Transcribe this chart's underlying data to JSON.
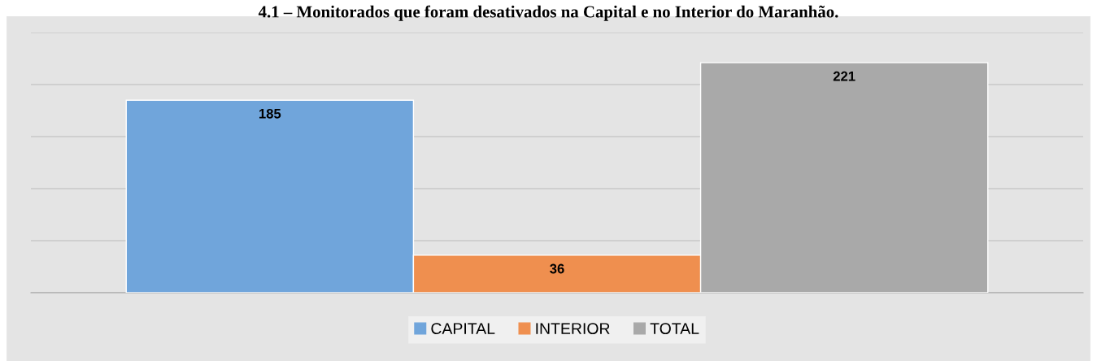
{
  "chart_data": {
    "type": "bar",
    "title": "4.1 – Monitorados que foram desativados na Capital e no Interior do Maranhão.",
    "categories": [
      null
    ],
    "series": [
      {
        "name": "CAPITAL",
        "color": "#70a5db",
        "values": [
          185
        ]
      },
      {
        "name": "INTERIOR",
        "color": "#ef8f4f",
        "values": [
          36
        ]
      },
      {
        "name": "TOTAL",
        "color": "#a9a9a9",
        "values": [
          221
        ]
      }
    ],
    "ylim": [
      0,
      250
    ],
    "yticks": [
      {
        "value": 0,
        "label": null
      },
      {
        "value": 50,
        "label": null
      },
      {
        "value": 100,
        "label": null
      },
      {
        "value": 150,
        "label": null
      },
      {
        "value": 200,
        "label": null
      },
      {
        "value": 250,
        "label": null
      }
    ],
    "grid": "y",
    "legend": "bottom",
    "data_labels": true
  }
}
